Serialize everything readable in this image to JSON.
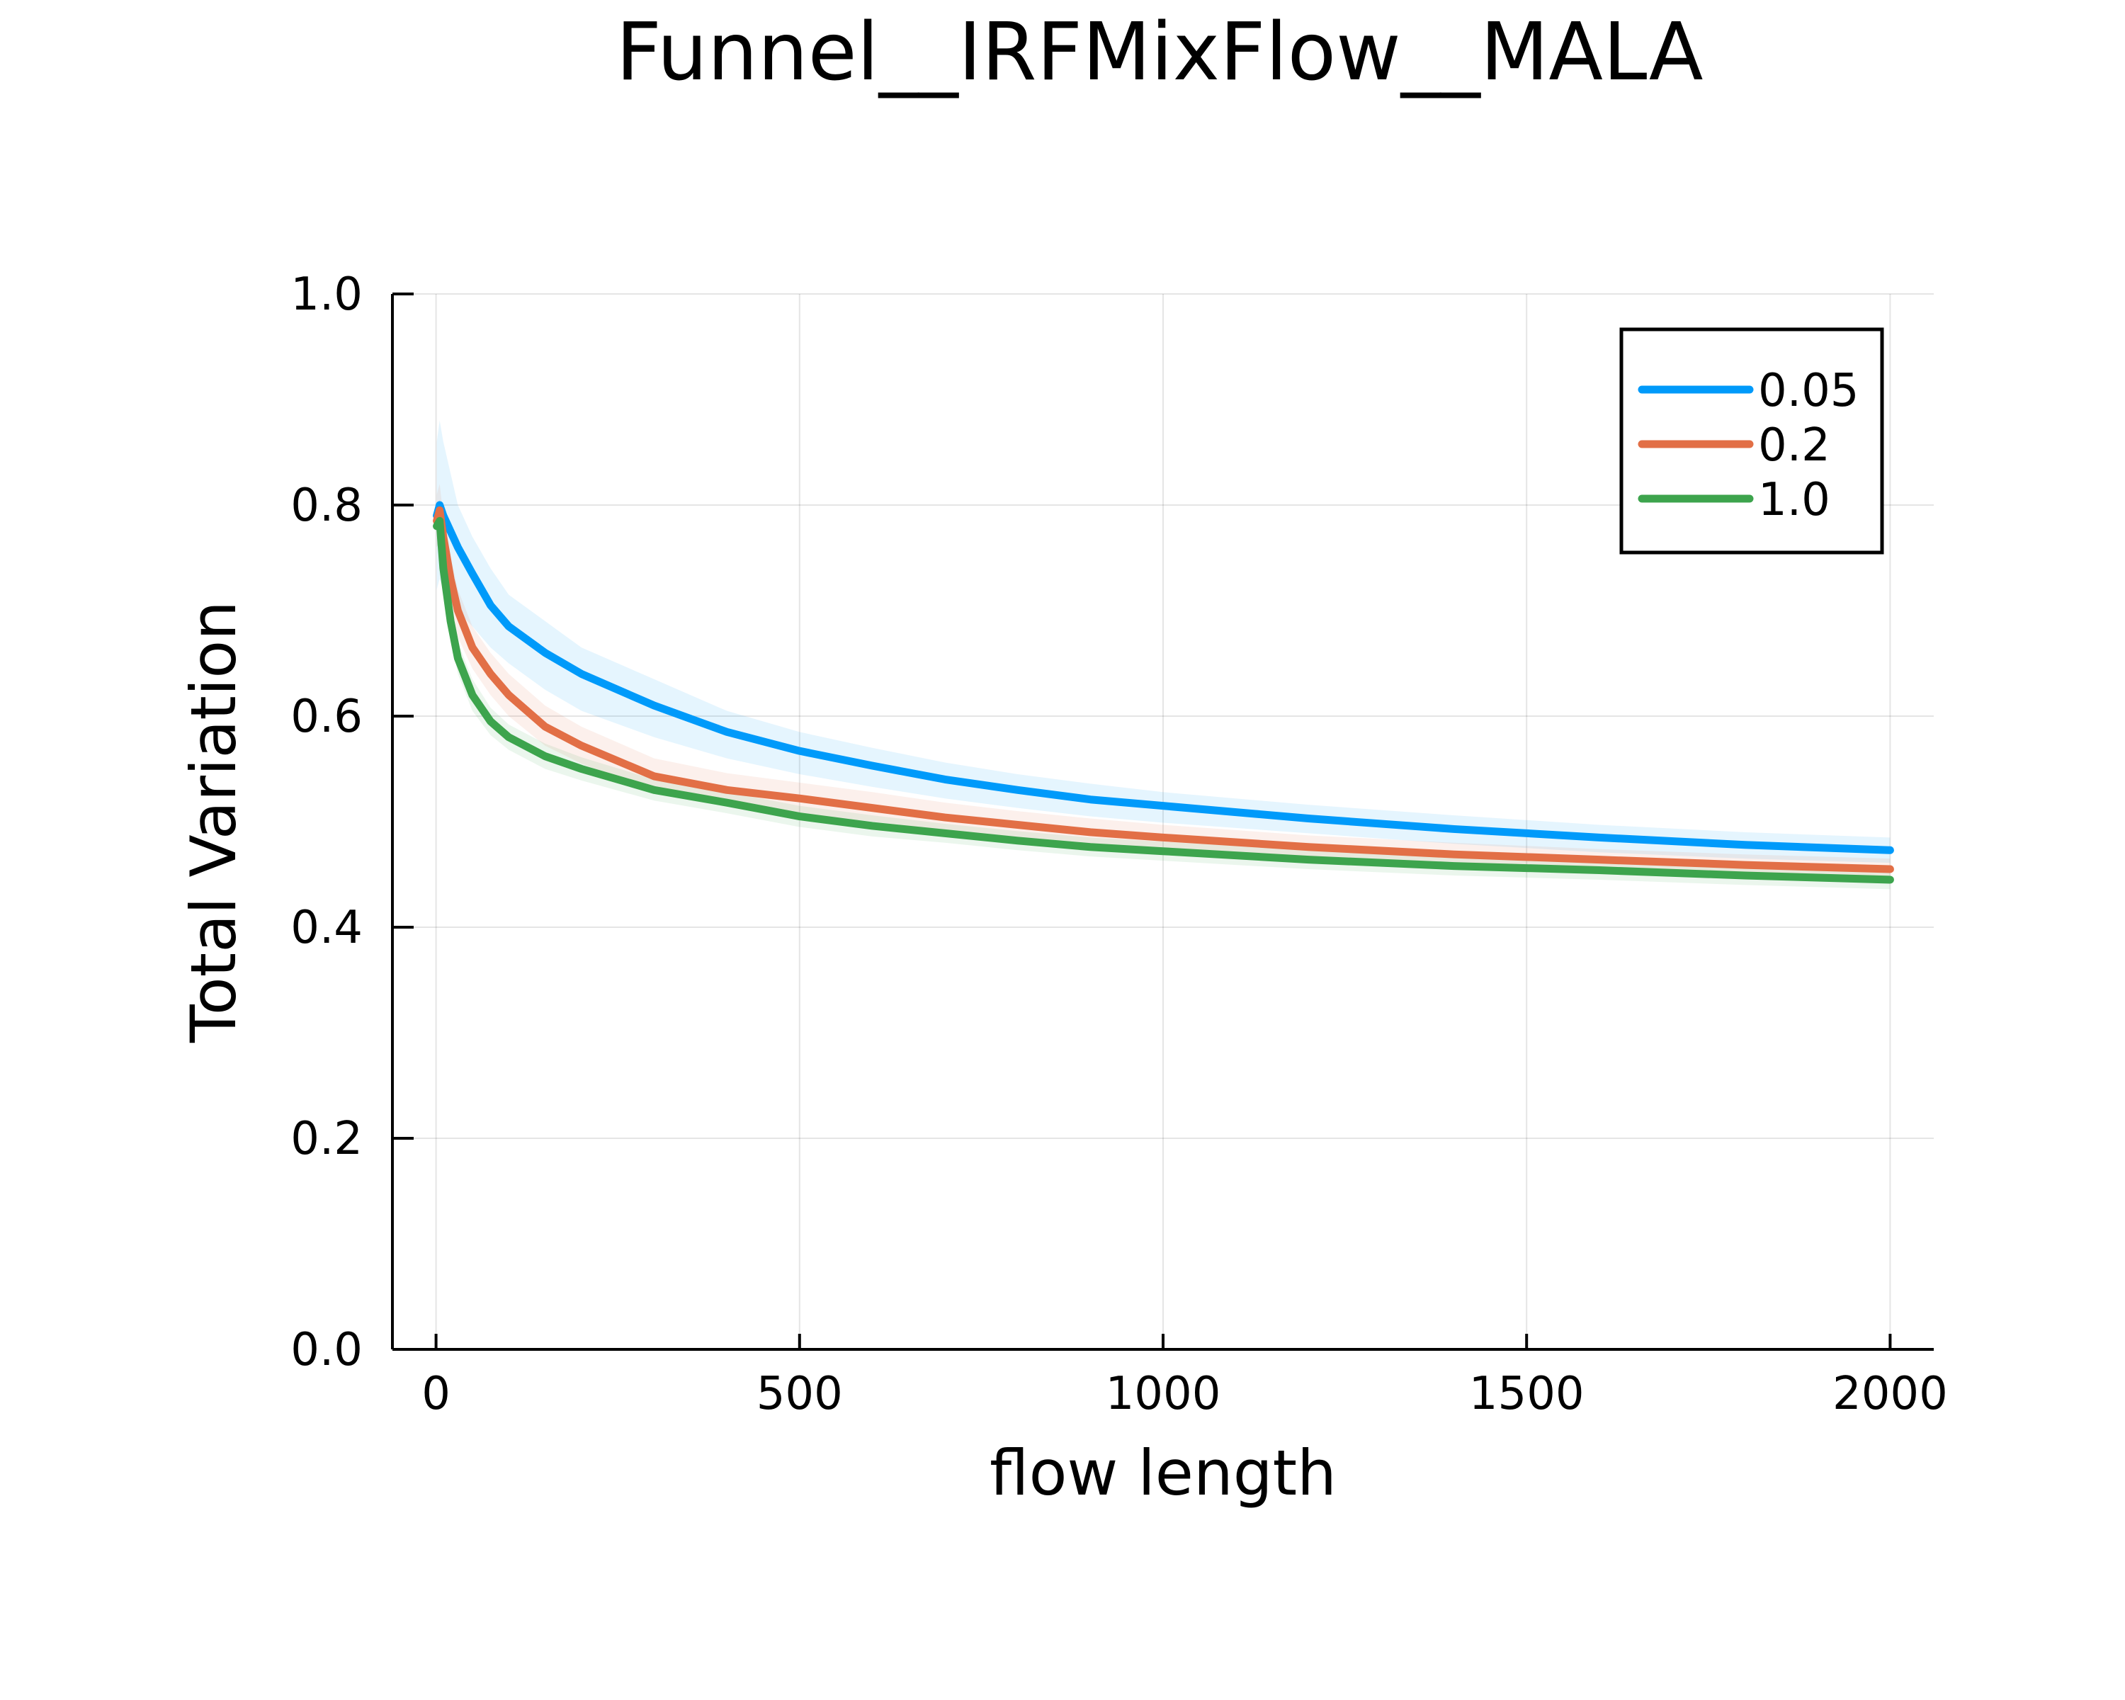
{
  "chart_data": {
    "type": "line",
    "title": "Funnel__IRFMixFlow__MALA",
    "xlabel": "flow length",
    "ylabel": "Total Variation",
    "xlim": [
      -60,
      2060
    ],
    "ylim": [
      0.0,
      1.0
    ],
    "x_ticks": [
      0,
      500,
      1000,
      1500,
      2000
    ],
    "x_tick_labels": [
      "0",
      "500",
      "1000",
      "1500",
      "2000"
    ],
    "y_ticks": [
      0.0,
      0.2,
      0.4,
      0.6,
      0.8,
      1.0
    ],
    "y_tick_labels": [
      "0.0",
      "0.2",
      "0.4",
      "0.6",
      "0.8",
      "1.0"
    ],
    "grid": true,
    "legend_position": "top-right",
    "series": [
      {
        "name": "0.05",
        "color": "#009AFA",
        "x": [
          1,
          5,
          10,
          20,
          30,
          50,
          75,
          100,
          150,
          200,
          300,
          400,
          500,
          600,
          700,
          800,
          900,
          1000,
          1200,
          1400,
          1600,
          1800,
          2000
        ],
        "y": [
          0.79,
          0.8,
          0.79,
          0.775,
          0.76,
          0.735,
          0.705,
          0.685,
          0.66,
          0.64,
          0.61,
          0.585,
          0.567,
          0.553,
          0.54,
          0.53,
          0.521,
          0.515,
          0.503,
          0.493,
          0.485,
          0.478,
          0.473
        ],
        "upper": [
          0.86,
          0.88,
          0.86,
          0.83,
          0.8,
          0.77,
          0.74,
          0.715,
          0.69,
          0.665,
          0.635,
          0.605,
          0.585,
          0.57,
          0.556,
          0.545,
          0.536,
          0.528,
          0.516,
          0.506,
          0.497,
          0.49,
          0.485
        ],
        "lower": [
          0.72,
          0.73,
          0.72,
          0.71,
          0.7,
          0.685,
          0.665,
          0.65,
          0.625,
          0.605,
          0.58,
          0.56,
          0.545,
          0.533,
          0.522,
          0.513,
          0.505,
          0.499,
          0.489,
          0.479,
          0.471,
          0.465,
          0.461
        ]
      },
      {
        "name": "0.2",
        "color": "#E26F46",
        "x": [
          1,
          5,
          10,
          20,
          30,
          50,
          75,
          100,
          150,
          200,
          300,
          400,
          500,
          600,
          700,
          800,
          900,
          1000,
          1200,
          1400,
          1600,
          1800,
          2000
        ],
        "y": [
          0.785,
          0.795,
          0.77,
          0.73,
          0.7,
          0.665,
          0.64,
          0.62,
          0.59,
          0.572,
          0.543,
          0.53,
          0.522,
          0.513,
          0.504,
          0.497,
          0.49,
          0.485,
          0.476,
          0.469,
          0.464,
          0.459,
          0.455
        ],
        "upper": [
          0.81,
          0.82,
          0.79,
          0.75,
          0.72,
          0.685,
          0.66,
          0.64,
          0.61,
          0.59,
          0.56,
          0.546,
          0.537,
          0.528,
          0.518,
          0.51,
          0.503,
          0.497,
          0.487,
          0.48,
          0.474,
          0.469,
          0.465
        ],
        "lower": [
          0.76,
          0.77,
          0.745,
          0.705,
          0.675,
          0.645,
          0.62,
          0.6,
          0.572,
          0.555,
          0.528,
          0.516,
          0.508,
          0.5,
          0.492,
          0.485,
          0.479,
          0.474,
          0.466,
          0.459,
          0.454,
          0.449,
          0.445
        ]
      },
      {
        "name": "1.0",
        "color": "#3DA44D",
        "x": [
          1,
          5,
          10,
          20,
          30,
          50,
          75,
          100,
          150,
          200,
          300,
          400,
          500,
          600,
          700,
          800,
          900,
          1000,
          1200,
          1400,
          1600,
          1800,
          2000
        ],
        "y": [
          0.78,
          0.785,
          0.74,
          0.69,
          0.655,
          0.62,
          0.595,
          0.58,
          0.562,
          0.55,
          0.53,
          0.518,
          0.505,
          0.496,
          0.489,
          0.482,
          0.476,
          0.472,
          0.464,
          0.458,
          0.454,
          0.449,
          0.445
        ],
        "upper": [
          0.8,
          0.805,
          0.76,
          0.705,
          0.67,
          0.635,
          0.608,
          0.592,
          0.574,
          0.561,
          0.54,
          0.528,
          0.515,
          0.506,
          0.498,
          0.491,
          0.485,
          0.481,
          0.473,
          0.467,
          0.463,
          0.458,
          0.454
        ],
        "lower": [
          0.76,
          0.765,
          0.72,
          0.675,
          0.64,
          0.605,
          0.582,
          0.568,
          0.55,
          0.539,
          0.52,
          0.508,
          0.495,
          0.486,
          0.48,
          0.473,
          0.467,
          0.463,
          0.455,
          0.449,
          0.445,
          0.44,
          0.436
        ]
      }
    ]
  }
}
